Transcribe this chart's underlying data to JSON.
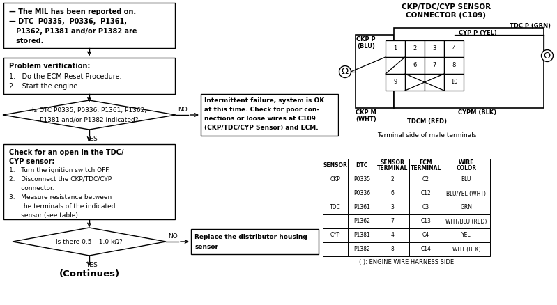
{
  "bg_color": "#ffffff",
  "box1_lines": [
    "— The MIL has been reported on.",
    "— DTC  P0335,  P0336,  P1361,",
    "   P1362, P1381 and/or P1382 are",
    "   stored."
  ],
  "box2_title": "Problem verification:",
  "box2_lines": [
    "1.   Do the ECM Reset Procedure.",
    "2.   Start the engine."
  ],
  "diamond1_lines": [
    "Is DTC P0335, P0336, P1361, P1362,",
    "P1381 and/or P1382 indicated?"
  ],
  "box3_title1": "Check for an open in the TDC/",
  "box3_title2": "CYP sensor:",
  "box3_lines": [
    "1.   Turn the ignition switch OFF.",
    "2.   Disconnect the CKP/TDC/CYP",
    "      connector.",
    "3.   Measure resistance between",
    "      the terminals of the indicated",
    "      sensor (see table)."
  ],
  "diamond2_line": "Is there 0.5 – 1.0 kΩ?",
  "intermittent_lines": [
    "Intermittent failure, system is OK",
    "at this time. Check for poor con-",
    "nections or loose wires at C109",
    "(CKP/TDC/CYP Sensor) and ECM."
  ],
  "replace_lines": [
    "Replace the distributor housing",
    "sensor"
  ],
  "continues_text": "(Continues)",
  "connector_title1": "CKP/TDC/CYP SENSOR",
  "connector_title2": "CONNECTOR (C109)",
  "tdc_p_grn": "TDC P (GRN)",
  "ckp_p_blu": "CKP P\n(BLU)",
  "cyp_p_yel": "CYP P (YEL)",
  "ckp_m_wht": "CKP M\n(WHT)",
  "cypm_blk": "CYPM (BLK)",
  "tdcm_red": "TDCM (RED)",
  "terminal_text": "Terminal side of male terminals",
  "table_headers": [
    "SENSOR",
    "DTC",
    "SENSOR\nTERMINAL",
    "ECM\nTERMINAL",
    "WIRE\nCOLOR"
  ],
  "table_rows": [
    [
      "CKP",
      "P0335",
      "2",
      "C2",
      "BLU"
    ],
    [
      "",
      "P0336",
      "6",
      "C12",
      "BLU/YEL (WHT)"
    ],
    [
      "TDC",
      "P1361",
      "3",
      "C3",
      "GRN"
    ],
    [
      "",
      "P1362",
      "7",
      "C13",
      "WHT/BLU (RED)"
    ],
    [
      "CYP",
      "P1381",
      "4",
      "C4",
      "YEL"
    ],
    [
      "",
      "P1382",
      "8",
      "C14",
      "WHT (BLK)"
    ]
  ],
  "engine_wire_note": "( ): ENGINE WIRE HARNESS SIDE"
}
